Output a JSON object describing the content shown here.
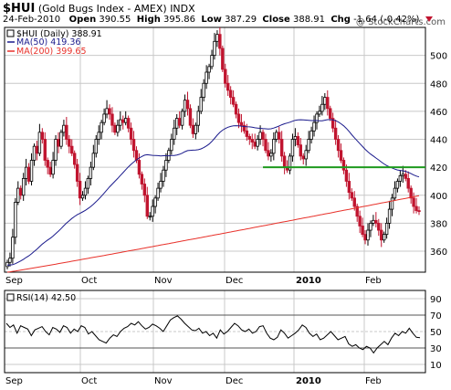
{
  "header": {
    "symbol": "$HUI",
    "name": "(Gold Bugs Index - AMEX)",
    "exchange": "INDX",
    "date": "24-Feb-2010",
    "open_label": "Open",
    "open": "390.55",
    "high_label": "High",
    "high": "395.86",
    "low_label": "Low",
    "low": "387.29",
    "close_label": "Close",
    "close": "388.91",
    "chg_label": "Chg",
    "chg": "-1.64 (-0.42%)",
    "credit": "@ StockCharts.com"
  },
  "legend": {
    "price": "$HUI (Daily) 388.91",
    "ma50": "MA(50) 419.36",
    "ma200": "MA(200) 399.65",
    "rsi": "RSI(14) 42.50"
  },
  "colors": {
    "up": "#000000",
    "down": "#c0142f",
    "ma50": "#1a1a8c",
    "ma200": "#e8312a",
    "support": "#1e9a1e",
    "grid": "#c8c8c8"
  },
  "chart_data": [
    {
      "type": "candlestick",
      "series_name": "$HUI (Daily)",
      "ylim": [
        345,
        520
      ],
      "yticks": [
        360,
        380,
        400,
        420,
        440,
        460,
        480,
        500
      ],
      "xlabels": [
        "Sep",
        "Oct",
        "Nov",
        "Dec",
        "2010",
        "Feb"
      ],
      "support_level": 420,
      "close_path": [
        352,
        355,
        370,
        395,
        405,
        400,
        412,
        420,
        410,
        425,
        435,
        430,
        445,
        440,
        425,
        420,
        415,
        425,
        440,
        435,
        445,
        450,
        440,
        435,
        430,
        422,
        410,
        398,
        400,
        405,
        412,
        420,
        430,
        440,
        445,
        452,
        458,
        462,
        458,
        450,
        445,
        450,
        454,
        452,
        455,
        448,
        440,
        432,
        425,
        415,
        408,
        400,
        385,
        385,
        392,
        398,
        405,
        410,
        418,
        425,
        432,
        440,
        448,
        455,
        450,
        460,
        468,
        462,
        450,
        444,
        450,
        460,
        470,
        480,
        488,
        492,
        500,
        510,
        515,
        505,
        490,
        480,
        475,
        470,
        465,
        458,
        452,
        450,
        446,
        442,
        440,
        438,
        435,
        440,
        445,
        440,
        432,
        428,
        430,
        440,
        445,
        440,
        428,
        420,
        418,
        428,
        440,
        442,
        436,
        428,
        426,
        432,
        440,
        446,
        452,
        458,
        460,
        465,
        470,
        462,
        455,
        448,
        440,
        432,
        425,
        418,
        410,
        402,
        398,
        392,
        385,
        378,
        372,
        368,
        375,
        380,
        382,
        380,
        375,
        368,
        372,
        380,
        390,
        398,
        405,
        410,
        414,
        415,
        412,
        405,
        398,
        392,
        389,
        388.91
      ],
      "ma50_start": 350,
      "ma200_start": 345,
      "ma200_end": 399.65
    },
    {
      "type": "line",
      "series_name": "RSI(14)",
      "ylim": [
        0,
        100
      ],
      "yticks": [
        10,
        30,
        50,
        70,
        90
      ],
      "reference_lines": [
        30,
        70
      ],
      "xlabels": [
        "Sep",
        "Oct",
        "Nov",
        "Dec",
        "2010",
        "Feb"
      ],
      "values": [
        60,
        55,
        58,
        48,
        57,
        55,
        53,
        45,
        52,
        54,
        56,
        50,
        46,
        55,
        53,
        49,
        57,
        55,
        48,
        53,
        50,
        57,
        55,
        47,
        50,
        45,
        40,
        38,
        36,
        42,
        46,
        44,
        50,
        54,
        56,
        60,
        58,
        62,
        57,
        53,
        55,
        59,
        57,
        54,
        50,
        57,
        64,
        67,
        69,
        65,
        60,
        56,
        52,
        51,
        54,
        48,
        50,
        45,
        48,
        42,
        52,
        47,
        50,
        55,
        60,
        57,
        52,
        50,
        53,
        48,
        50,
        56,
        57,
        48,
        42,
        40,
        43,
        52,
        48,
        42,
        45,
        48,
        52,
        58,
        55,
        48,
        44,
        47,
        40,
        42,
        46,
        50,
        45,
        40,
        42,
        44,
        35,
        32,
        34,
        30,
        28,
        32,
        30,
        24,
        30,
        34,
        38,
        34,
        42,
        48,
        45,
        50,
        48,
        54,
        48,
        43,
        42.5
      ]
    }
  ]
}
